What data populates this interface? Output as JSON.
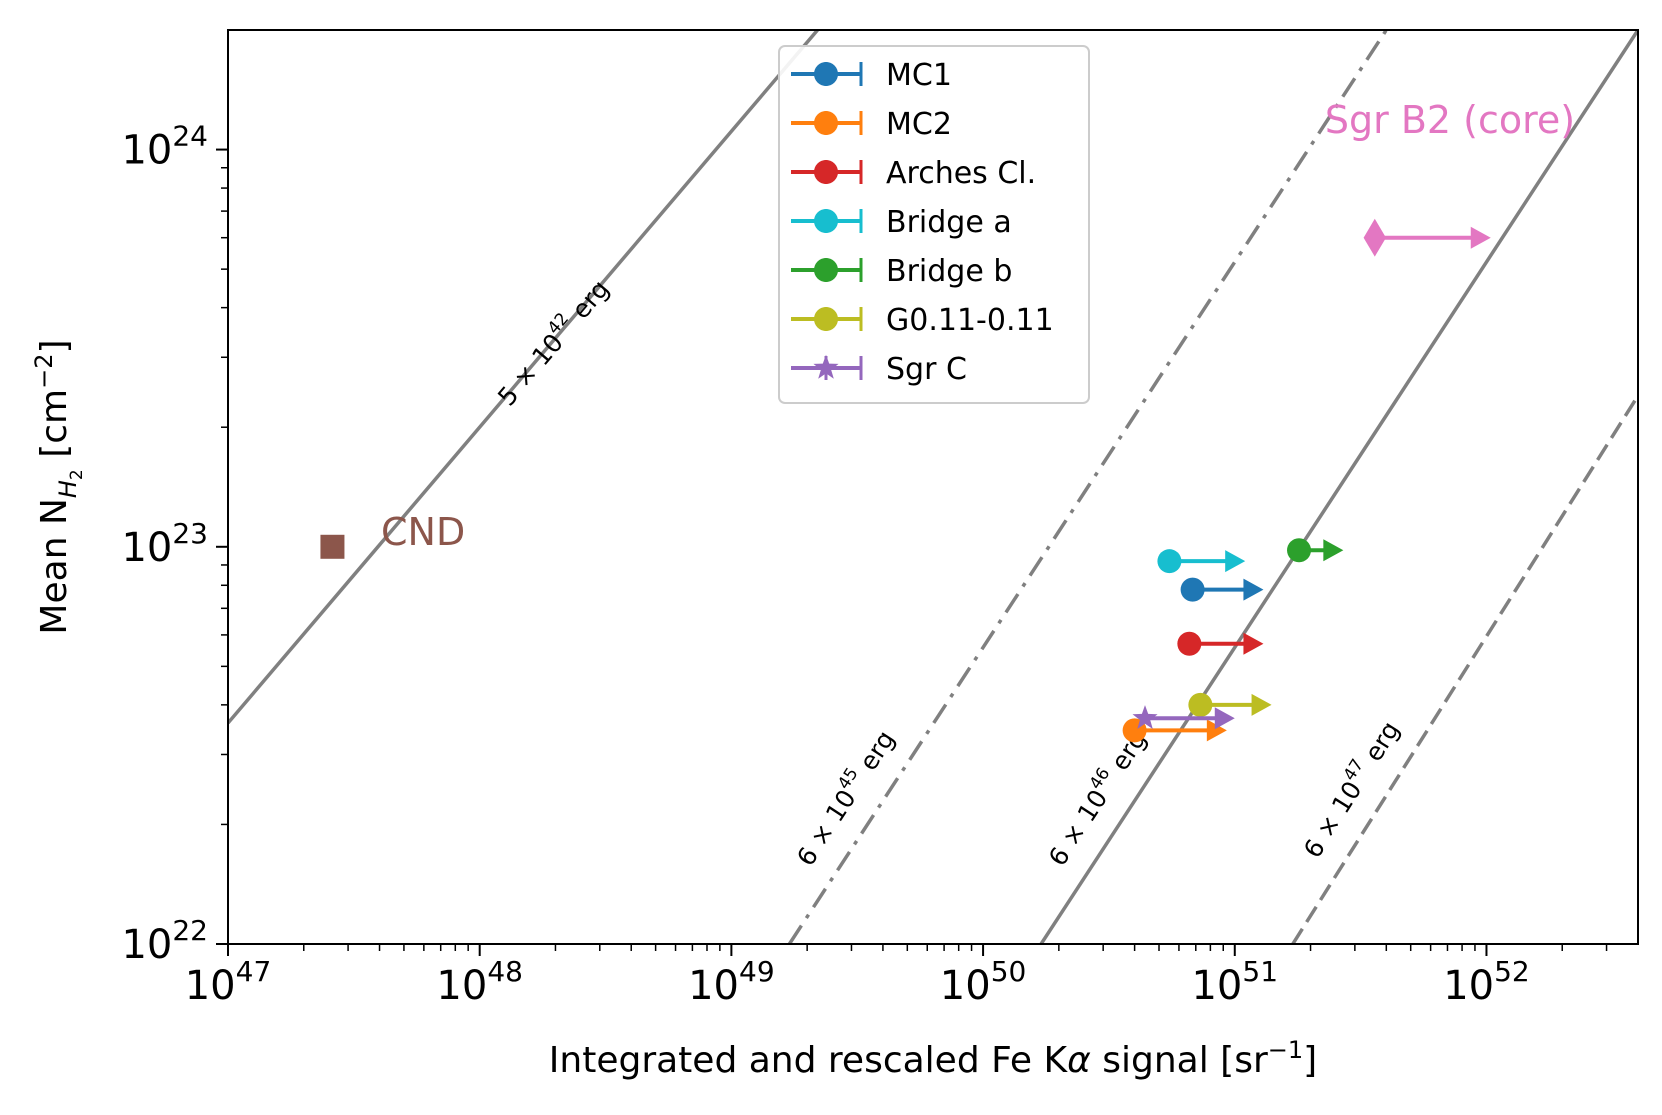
{
  "chart_data": {
    "type": "scatter",
    "xscale": "log",
    "yscale": "log",
    "xlim": [
      1e+47,
      4e+52
    ],
    "ylim": [
      1e+22,
      2e+24
    ],
    "xlabel_parts": [
      "Integrated and rescaled Fe K",
      "α",
      " signal [sr",
      "−1",
      "]"
    ],
    "ylabel_parts": [
      "Mean N",
      "H",
      "2",
      " [cm",
      "−2",
      "]"
    ],
    "xticks": [
      {
        "value": 1e+47,
        "base": "10",
        "exp": "47"
      },
      {
        "value": 1e+48,
        "base": "10",
        "exp": "48"
      },
      {
        "value": 1e+49,
        "base": "10",
        "exp": "49"
      },
      {
        "value": 1e+50,
        "base": "10",
        "exp": "50"
      },
      {
        "value": 1e+51,
        "base": "10",
        "exp": "51"
      },
      {
        "value": 1e+52,
        "base": "10",
        "exp": "52"
      }
    ],
    "yticks": [
      {
        "value": 1e+22,
        "base": "10",
        "exp": "22"
      },
      {
        "value": 1e+23,
        "base": "10",
        "exp": "23"
      },
      {
        "value": 1e+24,
        "base": "10",
        "exp": "24"
      }
    ],
    "energy_lines": [
      {
        "label_prefix": "5 × 10",
        "label_exp": "42",
        "label_suffix": " erg",
        "style": "solid",
        "points": [
          [
            1e+47,
            3.6e+22
          ],
          [
            2.2e+49,
            2e+24
          ]
        ]
      },
      {
        "label_prefix": "6 × 10",
        "label_exp": "45",
        "label_suffix": " erg",
        "style": "dashdot",
        "points": [
          [
            1.7e+49,
            1e+22
          ],
          [
            4e+51,
            2e+24
          ]
        ]
      },
      {
        "label_prefix": "6 × 10",
        "label_exp": "46",
        "label_suffix": " erg",
        "style": "solid",
        "points": [
          [
            1.7e+50,
            1e+22
          ],
          [
            4e+52,
            2e+24
          ]
        ]
      },
      {
        "label_prefix": "6 × 10",
        "label_exp": "47",
        "label_suffix": " erg",
        "style": "dashed",
        "points": [
          [
            1.7e+51,
            1e+22
          ],
          [
            4e+52,
            2.4e+23
          ]
        ]
      }
    ],
    "series": [
      {
        "name": "MC1",
        "color": "#1f77b4",
        "marker": "circle",
        "x": 6.8e+50,
        "y": 7.8e+22,
        "lower_limit": true,
        "x_arrow_end": 1.3e+51
      },
      {
        "name": "MC2",
        "color": "#ff7f0e",
        "marker": "circle",
        "x": 4e+50,
        "y": 3.45e+22,
        "lower_limit": true,
        "x_arrow_end": 9.3e+50
      },
      {
        "name": "Arches Cl.",
        "color": "#d62728",
        "marker": "circle",
        "x": 6.6e+50,
        "y": 5.7e+22,
        "lower_limit": true,
        "x_arrow_end": 1.3e+51
      },
      {
        "name": "Bridge a",
        "color": "#17becf",
        "marker": "circle",
        "x": 5.5e+50,
        "y": 9.2e+22,
        "lower_limit": true,
        "x_arrow_end": 1.1e+51
      },
      {
        "name": "Bridge b",
        "color": "#2ca02c",
        "marker": "circle",
        "x": 1.8e+51,
        "y": 9.8e+22,
        "lower_limit": true,
        "x_arrow_end": 2.7e+51
      },
      {
        "name": "G0.11-0.11",
        "color": "#bcbd22",
        "marker": "circle",
        "x": 7.3e+50,
        "y": 4e+22,
        "lower_limit": true,
        "x_arrow_end": 1.4e+51
      },
      {
        "name": "Sgr C",
        "color": "#9467bd",
        "marker": "star",
        "x": 4.4e+50,
        "y": 3.7e+22,
        "lower_limit": true,
        "x_arrow_end": 1e+51
      }
    ],
    "extra_points": [
      {
        "label": "Sgr B2 (core)",
        "color": "#e377c2",
        "marker": "diamond",
        "x": 3.6e+51,
        "y": 6e+23,
        "lower_limit": true,
        "x_arrow_end": 1.04e+52
      },
      {
        "label": "CND",
        "color": "#8c564b",
        "marker": "square",
        "x": 2.6e+47,
        "y": 1e+23,
        "lower_limit": false
      }
    ],
    "legend_position": "upper-center",
    "grid": false
  }
}
